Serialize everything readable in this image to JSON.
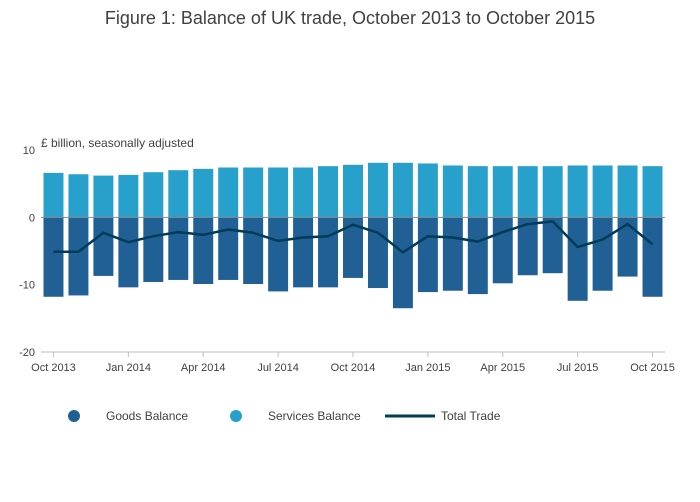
{
  "chart_data": {
    "type": "bar",
    "title": "Figure 1: Balance of UK trade, October 2013 to October 2015",
    "unit_label": "£ billion, seasonally adjusted",
    "xlabel": "",
    "ylabel": "",
    "ylim": [
      -20,
      10
    ],
    "yticks": [
      10,
      0,
      -10,
      -20
    ],
    "grid": false,
    "legend_position": "bottom",
    "x_tick_labels": [
      "Oct 2013",
      "Jan 2014",
      "Apr 2014",
      "Jul 2014",
      "Oct 2014",
      "Jan 2015",
      "Apr 2015",
      "Jul 2015",
      "Oct 2015"
    ],
    "x_tick_indices": [
      0,
      3,
      6,
      9,
      12,
      15,
      18,
      21,
      24
    ],
    "categories": [
      "2013 Oct",
      "2013 Nov",
      "2013 Dec",
      "2014 Jan",
      "2014 Feb",
      "2014 Mar",
      "2014 Apr",
      "2014 May",
      "2014 Jun",
      "2014 Jul",
      "2014 Aug",
      "2014 Sep",
      "2014 Oct",
      "2014 Nov",
      "2014 Dec",
      "2015 Jan",
      "2015 Feb",
      "2015 Mar",
      "2015 Apr",
      "2015 May",
      "2015 Jun",
      "2015 Jul",
      "2015 Aug",
      "2015 Sep",
      "2015 Oct"
    ],
    "series": [
      {
        "name": "Goods Balance",
        "type": "bar",
        "color": "#206095",
        "values": [
          -11.8,
          -11.6,
          -8.7,
          -10.4,
          -9.6,
          -9.3,
          -9.9,
          -9.3,
          -9.9,
          -11.0,
          -10.4,
          -10.4,
          -9.0,
          -10.5,
          -13.5,
          -11.1,
          -10.9,
          -11.4,
          -9.8,
          -8.6,
          -8.3,
          -12.4,
          -10.9,
          -8.8,
          -11.8
        ]
      },
      {
        "name": "Services Balance",
        "type": "bar",
        "color": "#27a0cc",
        "values": [
          6.6,
          6.4,
          6.2,
          6.3,
          6.7,
          7.0,
          7.2,
          7.4,
          7.4,
          7.4,
          7.4,
          7.6,
          7.8,
          8.1,
          8.1,
          8.0,
          7.7,
          7.6,
          7.6,
          7.6,
          7.6,
          7.7,
          7.7,
          7.7,
          7.6
        ]
      },
      {
        "name": "Total Trade",
        "type": "line",
        "color": "#003c57",
        "values": [
          -5.1,
          -5.1,
          -2.3,
          -3.7,
          -2.8,
          -2.2,
          -2.6,
          -1.8,
          -2.3,
          -3.5,
          -3.0,
          -2.8,
          -1.1,
          -2.3,
          -5.2,
          -2.8,
          -3.0,
          -3.6,
          -2.2,
          -1.0,
          -0.6,
          -4.4,
          -3.3,
          -1.0,
          -4.0
        ]
      }
    ]
  },
  "colors": {
    "axis": "#bebebe",
    "text": "#414042",
    "zero_line": "#8c8c8c"
  }
}
